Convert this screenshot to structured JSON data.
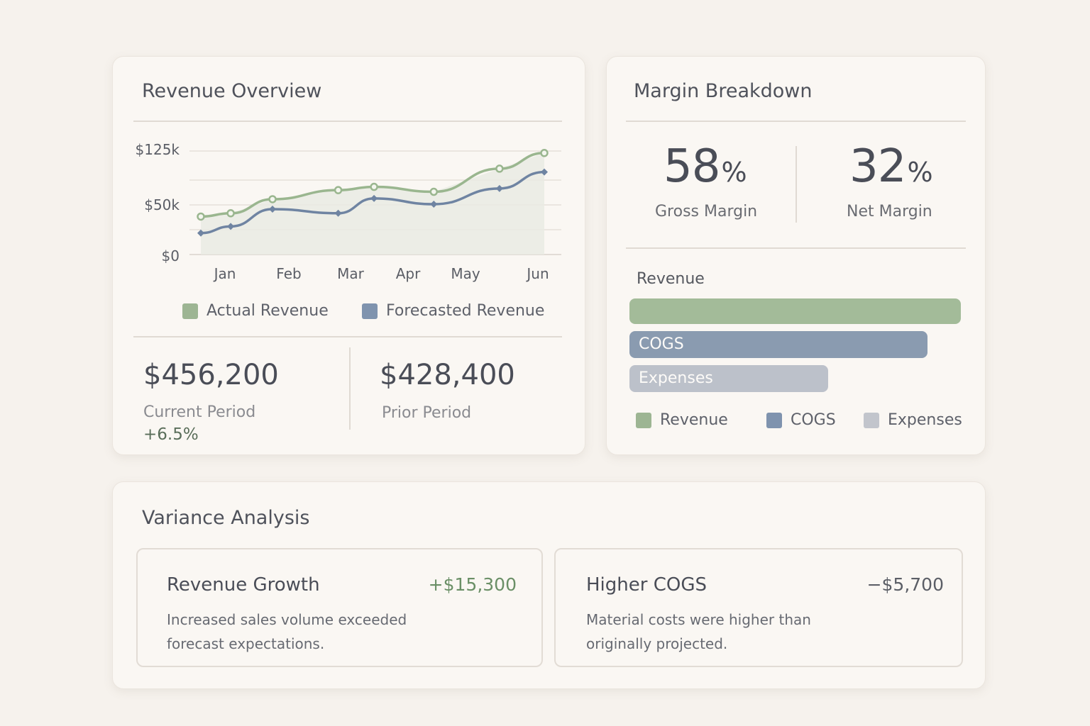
{
  "revenue": {
    "title": "Revenue Overview",
    "current_value": "$456,200",
    "current_label": "Current Period",
    "current_delta": "+6.5%",
    "prior_value": "$428,400",
    "prior_label": "Prior Period"
  },
  "margin": {
    "title": "Margin Breakdown",
    "gross_value": "58",
    "gross_unit": "%",
    "gross_label": "Gross Margin",
    "net_value": "32",
    "net_unit": "%",
    "net_label": "Net Margin",
    "bars_heading": "Revenue",
    "bars": [
      {
        "label": "",
        "fraction": 1.0,
        "color": "#a3bb99"
      },
      {
        "label": "COGS",
        "fraction": 0.9,
        "color": "#8a9bb0"
      },
      {
        "label": "Expenses",
        "fraction": 0.6,
        "color": "#bcc1ca"
      }
    ],
    "legend": [
      {
        "label": "Revenue",
        "color": "#9db593"
      },
      {
        "label": "COGS",
        "color": "#7f93ae"
      },
      {
        "label": "Expenses",
        "color": "#c2c5cc"
      }
    ]
  },
  "variance": {
    "title": "Variance Analysis",
    "items": [
      {
        "title": "Revenue Growth",
        "amount": "+$15,300",
        "amount_color": "#6a8f66",
        "desc": "Increased sales volume exceeded forecast expectations."
      },
      {
        "title": "Higher COGS",
        "amount": "−$5,700",
        "amount_color": "#5b5e66",
        "desc": "Material costs were higher than originally projected."
      }
    ]
  },
  "chart_data": {
    "type": "line",
    "categories": [
      "Jan",
      "Feb",
      "Mar",
      "Apr",
      "May",
      "Jun"
    ],
    "y_tick_labels": [
      "$125k",
      "$50k",
      "$0"
    ],
    "ylim": [
      0,
      140
    ],
    "series": [
      {
        "name": "Actual Revenue",
        "color": "#9ab68f",
        "x": [
          0,
          0.5,
          1.2,
          2.3,
          2.9,
          3.9,
          5.0,
          5.75
        ],
        "values": [
          46,
          50,
          67,
          78,
          82,
          76,
          104,
          123
        ]
      },
      {
        "name": "Forecasted Revenue",
        "color": "#6f84a2",
        "x": [
          0,
          0.5,
          1.2,
          2.3,
          2.9,
          3.9,
          5.0,
          5.75
        ],
        "values": [
          26,
          34,
          55,
          50,
          68,
          61,
          80,
          100
        ]
      }
    ],
    "legend_position": "bottom"
  }
}
